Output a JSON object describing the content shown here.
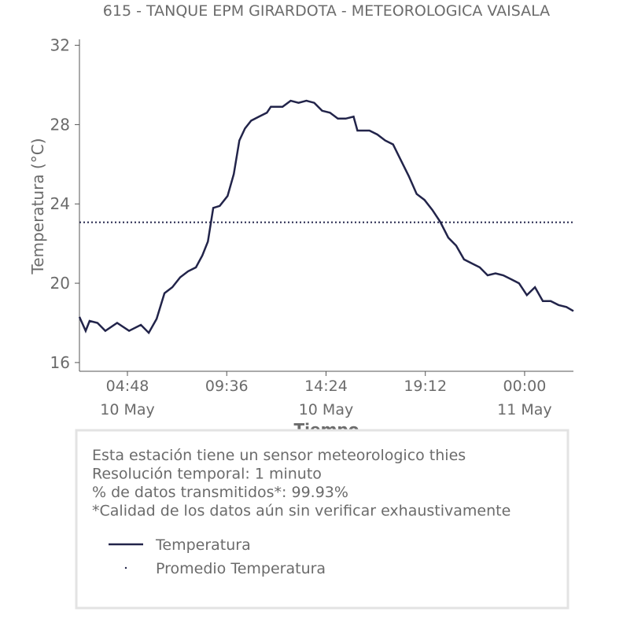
{
  "chart_data": {
    "type": "line",
    "title": "615 - TANQUE EPM GIRARDOTA - METEOROLOGICA VAISALA",
    "xlabel": "Tiempo",
    "ylabel": "Temperatura (°C)",
    "xlim": [
      2.48,
      26.36
    ],
    "ylim": [
      15.56,
      32.3
    ],
    "xticks": [
      {
        "value": 4.8,
        "label": "04:48\n10 May"
      },
      {
        "value": 9.6,
        "label": "09:36"
      },
      {
        "value": 14.4,
        "label": "14:24\n10 May"
      },
      {
        "value": 19.2,
        "label": "19:12"
      },
      {
        "value": 24.0,
        "label": "00:00\n11 May"
      }
    ],
    "yticks": [
      16,
      20,
      24,
      28,
      32
    ],
    "series": [
      {
        "name": "Temperatura",
        "color": "#22244a",
        "x": [
          2.48,
          2.78,
          2.97,
          3.35,
          3.73,
          4.3,
          4.88,
          5.45,
          5.83,
          6.21,
          6.59,
          6.97,
          7.35,
          7.73,
          8.11,
          8.42,
          8.69,
          8.95,
          9.26,
          9.64,
          9.94,
          10.21,
          10.48,
          10.78,
          11.16,
          11.54,
          11.73,
          12.3,
          12.69,
          13.07,
          13.45,
          13.83,
          14.21,
          14.59,
          14.97,
          15.35,
          15.73,
          15.92,
          16.5,
          16.88,
          17.26,
          17.64,
          18.02,
          18.4,
          18.78,
          19.16,
          19.54,
          19.92,
          20.31,
          20.69,
          21.07,
          21.45,
          21.83,
          22.21,
          22.59,
          22.97,
          23.35,
          23.73,
          24.11,
          24.5,
          24.88,
          25.26,
          25.64,
          26.02,
          26.36
        ],
        "values": [
          18.3,
          17.6,
          18.1,
          18.0,
          17.6,
          18.0,
          17.6,
          17.9,
          17.5,
          18.2,
          19.5,
          19.8,
          20.3,
          20.6,
          20.8,
          21.4,
          22.1,
          23.8,
          23.9,
          24.4,
          25.5,
          27.2,
          27.8,
          28.2,
          28.4,
          28.6,
          28.9,
          28.9,
          29.2,
          29.1,
          29.2,
          29.1,
          28.7,
          28.6,
          28.3,
          28.3,
          28.4,
          27.7,
          27.7,
          27.5,
          27.2,
          27.0,
          26.2,
          25.4,
          24.5,
          24.2,
          23.7,
          23.1,
          22.3,
          21.9,
          21.2,
          21.0,
          20.8,
          20.4,
          20.5,
          20.4,
          20.2,
          20.0,
          19.4,
          19.8,
          19.1,
          19.1,
          18.9,
          18.8,
          18.6
        ]
      },
      {
        "name": "Promedio Temperatura",
        "color": "#22244a",
        "style": "dotted",
        "value": 23.07
      }
    ],
    "info": [
      "Esta estación tiene un sensor meteorologico thies",
      "Resolución temporal: 1 minuto",
      "% de datos transmitidos*: 99.93%",
      "*Calidad de los datos aún sin verificar exhaustivamente"
    ]
  }
}
